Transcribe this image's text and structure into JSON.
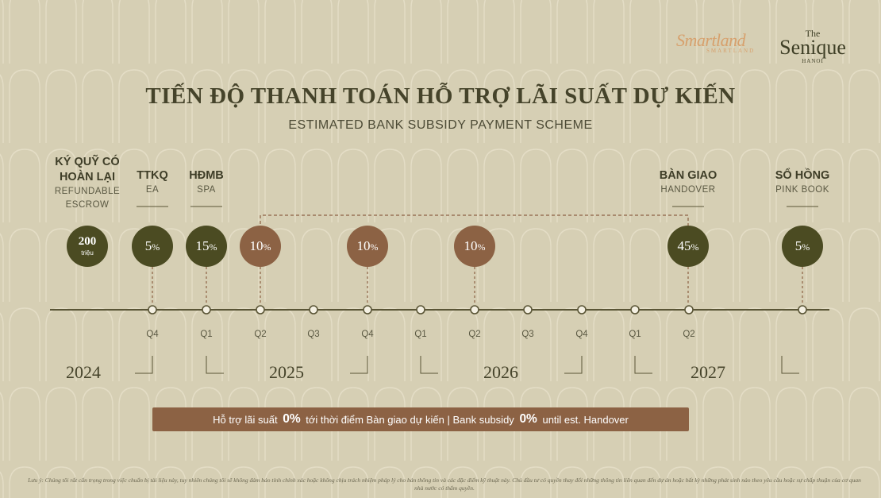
{
  "brand": {
    "smartland": "Smartland",
    "smartland_sub": "SMARTLAND",
    "senique_the": "The",
    "senique_name": "Senique",
    "senique_city": "HANOI"
  },
  "title": "TIẾN ĐỘ THANH TOÁN HỖ TRỢ LÃI SUẤT DỰ KIẾN",
  "subtitle": "ESTIMATED BANK SUBSIDY PAYMENT SCHEME",
  "milestones": [
    {
      "vi1": "KÝ QUỸ CÓ",
      "vi2": "HOÀN LẠI",
      "en1": "REFUNDABLE",
      "en2": "ESCROW",
      "amount": "200",
      "unit": "triệu"
    },
    {
      "vi": "TTKQ",
      "en": "EA",
      "value": "5",
      "sym": "%"
    },
    {
      "vi": "HĐMB",
      "en": "SPA",
      "value": "15",
      "sym": "%"
    },
    {
      "value": "10",
      "sym": "%"
    },
    {
      "value": "10",
      "sym": "%"
    },
    {
      "value": "10",
      "sym": "%"
    },
    {
      "vi": "BÀN GIAO",
      "en": "HANDOVER",
      "value": "45",
      "sym": "%"
    },
    {
      "vi": "SỔ HỒNG",
      "en": "PINK BOOK",
      "value": "5",
      "sym": "%"
    }
  ],
  "quarters": [
    "Q4",
    "Q1",
    "Q2",
    "Q3",
    "Q4",
    "Q1",
    "Q2",
    "Q3",
    "Q4",
    "Q1",
    "Q2"
  ],
  "years": [
    "2024",
    "2025",
    "2026",
    "2027"
  ],
  "colors": {
    "dark": "#4b4b22",
    "brown": "#8c6244",
    "accent_line": "#8c6244"
  },
  "banner": {
    "pre": "Hỗ trợ lãi suất",
    "bold1": "0%",
    "mid": "tới thời điểm Bàn giao dự kiến | Bank subsidy",
    "bold2": "0%",
    "post": "until est. Handover"
  },
  "disclaimer": "Lưu ý: Chúng tôi rất cẩn trọng trong việc chuẩn bị tài liệu này, tuy nhiên chúng tôi sẽ không đảm bảo tính chính xác hoặc không chịu trách nhiệm pháp lý cho bản thông tin và các đặc điểm kỹ thuật này. Chủ đầu tư có quyền thay đổi những thông tin liên quan đến dự án hoặc bất kỳ những phát sinh nào theo yêu cầu hoặc sự chấp thuận của cơ quan nhà nước có thẩm quyền."
}
